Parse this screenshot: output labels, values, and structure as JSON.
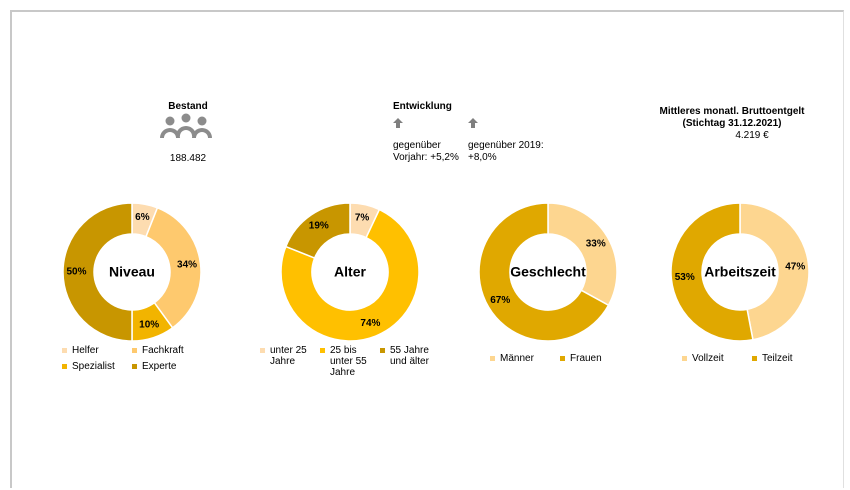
{
  "stats": {
    "bestand": {
      "title": "Bestand",
      "value": "188.482"
    },
    "entwicklung": {
      "title": "Entwicklung",
      "items": [
        "gegenüber Vorjahr: +5,2%",
        "gegenüber 2019: +8,0%"
      ]
    },
    "entgelt": {
      "title": "Mittleres monatl. Bruttoentgelt (Stichtag 31.12.2021)",
      "value": "4.219 €"
    }
  },
  "chart_data": [
    {
      "type": "donut",
      "title": "Niveau",
      "categories": [
        "Helfer",
        "Fachkraft",
        "Spezialist",
        "Experte"
      ],
      "values": [
        6,
        34,
        10,
        50
      ],
      "value_labels": [
        "6%",
        "34%",
        "10%",
        "50%"
      ],
      "colors": [
        "#fddcb0",
        "#fec96e",
        "#f2b400",
        "#c89600"
      ]
    },
    {
      "type": "donut",
      "title": "Alter",
      "categories": [
        "unter 25 Jahre",
        "25 bis unter 55 Jahre",
        "55 Jahre und älter"
      ],
      "values": [
        7,
        74,
        19
      ],
      "value_labels": [
        "7%",
        "74%",
        "19%"
      ],
      "colors": [
        "#fddcb0",
        "#ffc000",
        "#c89600"
      ]
    },
    {
      "type": "donut",
      "title": "Geschlecht",
      "categories": [
        "Männer",
        "Frauen"
      ],
      "values": [
        33,
        67
      ],
      "value_labels": [
        "33%",
        "67%"
      ],
      "colors": [
        "#fdd690",
        "#e0a800"
      ]
    },
    {
      "type": "donut",
      "title": "Arbeitszeit",
      "categories": [
        "Vollzeit",
        "Teilzeit"
      ],
      "values": [
        47,
        53
      ],
      "value_labels": [
        "47%",
        "53%"
      ],
      "colors": [
        "#fdd690",
        "#e0a800"
      ]
    }
  ]
}
